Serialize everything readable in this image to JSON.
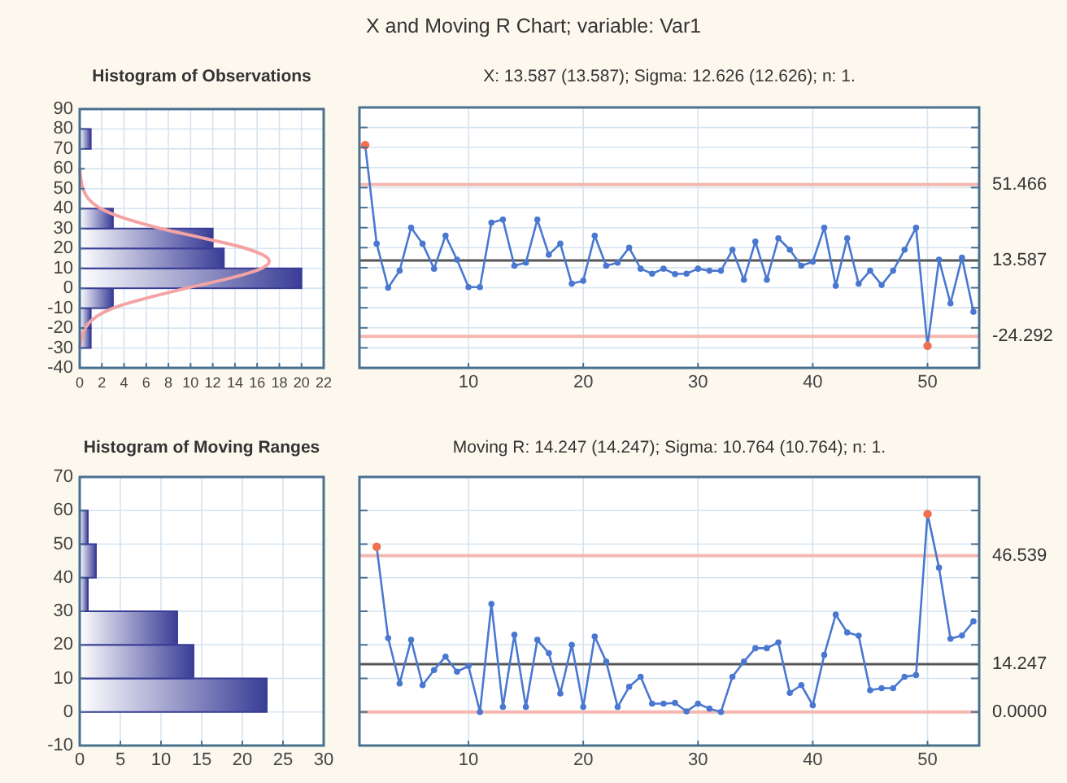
{
  "chart_data": [
    {
      "type": "histogram",
      "title": "Histogram of Observations",
      "orientation": "horizontal",
      "bins": [
        -30,
        -20,
        -10,
        0,
        10,
        20,
        30,
        40,
        50,
        60,
        70,
        80
      ],
      "series": [
        {
          "type": "histogram",
          "color": "#3a3d96",
          "values": [
            1,
            1,
            3,
            20,
            13,
            12,
            3,
            0,
            0,
            0,
            1
          ]
        },
        {
          "type": "line",
          "color": "#f4a3a3",
          "marker": "none",
          "x": [
            -30,
            -20,
            -10,
            0,
            5,
            10,
            13.6,
            20,
            25,
            30,
            40,
            50,
            60
          ],
          "values": [
            0,
            0.5,
            3,
            9.6,
            13.5,
            16.4,
            17.1,
            15,
            11.3,
            7.3,
            1.9,
            0.3,
            0
          ]
        }
      ],
      "xlim": [
        0,
        22
      ],
      "xticks": [
        0,
        2,
        4,
        6,
        8,
        10,
        12,
        14,
        16,
        18,
        20,
        22
      ],
      "ylim": [
        -40,
        90
      ],
      "yticks": [
        -40,
        -30,
        -20,
        -10,
        0,
        10,
        20,
        30,
        40,
        50,
        60,
        70,
        80,
        90
      ],
      "grid": true
    },
    {
      "type": "line",
      "title": "X and Moving R Chart; variable: Var1",
      "subtitle": "X: 13.587 (13.587); Sigma: 12.626 (12.626); n: 1.",
      "x": [
        1,
        2,
        3,
        4,
        5,
        6,
        7,
        8,
        9,
        10,
        11,
        12,
        13,
        14,
        15,
        16,
        17,
        18,
        19,
        20,
        21,
        22,
        23,
        24,
        25,
        26,
        27,
        28,
        29,
        30,
        31,
        32,
        33,
        34,
        35,
        36,
        37,
        38,
        39,
        40,
        41,
        42,
        43,
        44,
        45,
        46,
        47,
        48,
        49,
        50,
        51,
        52,
        53,
        54
      ],
      "series": [
        {
          "color": "#4a78d0",
          "values": [
            71.2,
            22,
            0,
            8.5,
            30,
            22,
            9.5,
            26,
            14,
            0.3,
            0.3,
            32.5,
            34,
            11,
            12.5,
            34,
            16.5,
            22,
            2,
            3.5,
            26,
            11,
            12.5,
            20,
            9.5,
            7,
            9.5,
            6.8,
            7,
            9.5,
            8.5,
            8.5,
            19,
            4,
            23,
            4,
            24.7,
            19,
            11,
            13,
            30,
            1,
            24.7,
            2,
            8.5,
            1.4,
            8.5,
            19,
            30,
            -29,
            14,
            -7.8,
            15,
            -12
          ],
          "colors": [
            "#f07050",
            "#4a78d0",
            "#4a78d0",
            "#4a78d0",
            "#4a78d0",
            "#4a78d0",
            "#4a78d0",
            "#4a78d0",
            "#4a78d0",
            "#4a78d0",
            "#4a78d0",
            "#4a78d0",
            "#4a78d0",
            "#4a78d0",
            "#4a78d0",
            "#4a78d0",
            "#4a78d0",
            "#4a78d0",
            "#4a78d0",
            "#4a78d0",
            "#4a78d0",
            "#4a78d0",
            "#4a78d0",
            "#4a78d0",
            "#4a78d0",
            "#4a78d0",
            "#4a78d0",
            "#4a78d0",
            "#4a78d0",
            "#4a78d0",
            "#4a78d0",
            "#4a78d0",
            "#4a78d0",
            "#4a78d0",
            "#4a78d0",
            "#4a78d0",
            "#4a78d0",
            "#4a78d0",
            "#4a78d0",
            "#4a78d0",
            "#4a78d0",
            "#4a78d0",
            "#4a78d0",
            "#4a78d0",
            "#4a78d0",
            "#4a78d0",
            "#4a78d0",
            "#4a78d0",
            "#4a78d0",
            "#f07050",
            "#4a78d0",
            "#4a78d0",
            "#4a78d0",
            "#4a78d0"
          ]
        }
      ],
      "marker": "circle",
      "xlim": [
        0.5,
        54.5
      ],
      "xticks": [
        10,
        20,
        30,
        40,
        50
      ],
      "ylim": [
        -40,
        90
      ],
      "yticks": [
        {
          "value": -40,
          "label": null
        },
        {
          "value": -30,
          "label": null
        },
        {
          "value": -20,
          "label": null
        },
        {
          "value": -10,
          "label": null
        },
        {
          "value": 0,
          "label": null
        },
        {
          "value": 10,
          "label": null
        },
        {
          "value": 20,
          "label": null
        },
        {
          "value": 30,
          "label": null
        },
        {
          "value": 40,
          "label": null
        },
        {
          "value": 50,
          "label": null
        },
        {
          "value": 60,
          "label": null
        },
        {
          "value": 70,
          "label": null
        },
        {
          "value": 80,
          "label": null
        },
        {
          "value": 90,
          "label": null
        }
      ],
      "ref_lines": [
        {
          "axis": "y",
          "value": 51.466,
          "label": "51.466",
          "color": "#f4b8b0"
        },
        {
          "axis": "y",
          "value": 13.587,
          "label": "13.587",
          "color": "#555555"
        },
        {
          "axis": "y",
          "value": -24.292,
          "label": "-24.292",
          "color": "#f4b8b0"
        }
      ],
      "grid": true
    },
    {
      "type": "histogram",
      "title": "Histogram of Moving Ranges",
      "orientation": "horizontal",
      "bins": [
        0,
        10,
        20,
        30,
        40,
        50,
        60
      ],
      "series": [
        {
          "type": "histogram",
          "color": "#3a3d96",
          "values": [
            23,
            14,
            12,
            1,
            2,
            1
          ]
        }
      ],
      "xlim": [
        0,
        30
      ],
      "xticks": [
        0,
        5,
        10,
        15,
        20,
        25,
        30
      ],
      "ylim": [
        -10,
        70
      ],
      "yticks": [
        -10,
        0,
        10,
        20,
        30,
        40,
        50,
        60,
        70
      ],
      "grid": true
    },
    {
      "type": "line",
      "subtitle": "Moving R: 14.247 (14.247); Sigma: 10.764 (10.764); n: 1.",
      "x": [
        2,
        3,
        4,
        5,
        6,
        7,
        8,
        9,
        10,
        11,
        12,
        13,
        14,
        15,
        16,
        17,
        18,
        19,
        20,
        21,
        22,
        23,
        24,
        25,
        26,
        27,
        28,
        29,
        30,
        31,
        32,
        33,
        34,
        35,
        36,
        37,
        38,
        39,
        40,
        41,
        42,
        43,
        44,
        45,
        46,
        47,
        48,
        49,
        50,
        51,
        52,
        53,
        54
      ],
      "series": [
        {
          "color": "#4a78d0",
          "values": [
            49.2,
            22,
            8.5,
            21.5,
            8,
            12.5,
            16.5,
            12,
            13.7,
            0,
            32.2,
            1.5,
            23,
            1.5,
            21.5,
            17.5,
            5.5,
            20,
            1.5,
            22.5,
            15,
            1.5,
            7.5,
            10.5,
            2.5,
            2.5,
            2.7,
            0.2,
            2.5,
            1,
            0,
            10.5,
            15,
            19,
            19,
            20.7,
            5.7,
            8,
            2,
            17,
            29,
            23.7,
            22.7,
            6.5,
            7.1,
            7.1,
            10.5,
            11,
            59,
            43,
            21.8,
            22.8,
            27
          ],
          "colors": [
            "#f07050",
            "#4a78d0",
            "#4a78d0",
            "#4a78d0",
            "#4a78d0",
            "#4a78d0",
            "#4a78d0",
            "#4a78d0",
            "#4a78d0",
            "#4a78d0",
            "#4a78d0",
            "#4a78d0",
            "#4a78d0",
            "#4a78d0",
            "#4a78d0",
            "#4a78d0",
            "#4a78d0",
            "#4a78d0",
            "#4a78d0",
            "#4a78d0",
            "#4a78d0",
            "#4a78d0",
            "#4a78d0",
            "#4a78d0",
            "#4a78d0",
            "#4a78d0",
            "#4a78d0",
            "#4a78d0",
            "#4a78d0",
            "#4a78d0",
            "#4a78d0",
            "#4a78d0",
            "#4a78d0",
            "#4a78d0",
            "#4a78d0",
            "#4a78d0",
            "#4a78d0",
            "#4a78d0",
            "#4a78d0",
            "#4a78d0",
            "#4a78d0",
            "#4a78d0",
            "#4a78d0",
            "#4a78d0",
            "#4a78d0",
            "#4a78d0",
            "#4a78d0",
            "#4a78d0",
            "#f07050",
            "#4a78d0",
            "#4a78d0",
            "#4a78d0",
            "#4a78d0"
          ]
        }
      ],
      "marker": "circle",
      "xlim": [
        0.5,
        54.5
      ],
      "xticks": [
        10,
        20,
        30,
        40,
        50
      ],
      "ylim": [
        -10,
        70
      ],
      "yticks": [
        {
          "value": -10,
          "label": null
        },
        {
          "value": 0,
          "label": null
        },
        {
          "value": 10,
          "label": null
        },
        {
          "value": 20,
          "label": null
        },
        {
          "value": 30,
          "label": null
        },
        {
          "value": 40,
          "label": null
        },
        {
          "value": 50,
          "label": null
        },
        {
          "value": 60,
          "label": null
        },
        {
          "value": 70,
          "label": null
        }
      ],
      "ref_lines": [
        {
          "axis": "y",
          "value": 46.539,
          "label": "46.539",
          "color": "#f4b8b0"
        },
        {
          "axis": "y",
          "value": 14.247,
          "label": "14.247",
          "color": "#555555"
        },
        {
          "axis": "y",
          "value": 0,
          "label": "0.0000",
          "color": "#f4b8b0"
        }
      ],
      "grid": true
    }
  ]
}
